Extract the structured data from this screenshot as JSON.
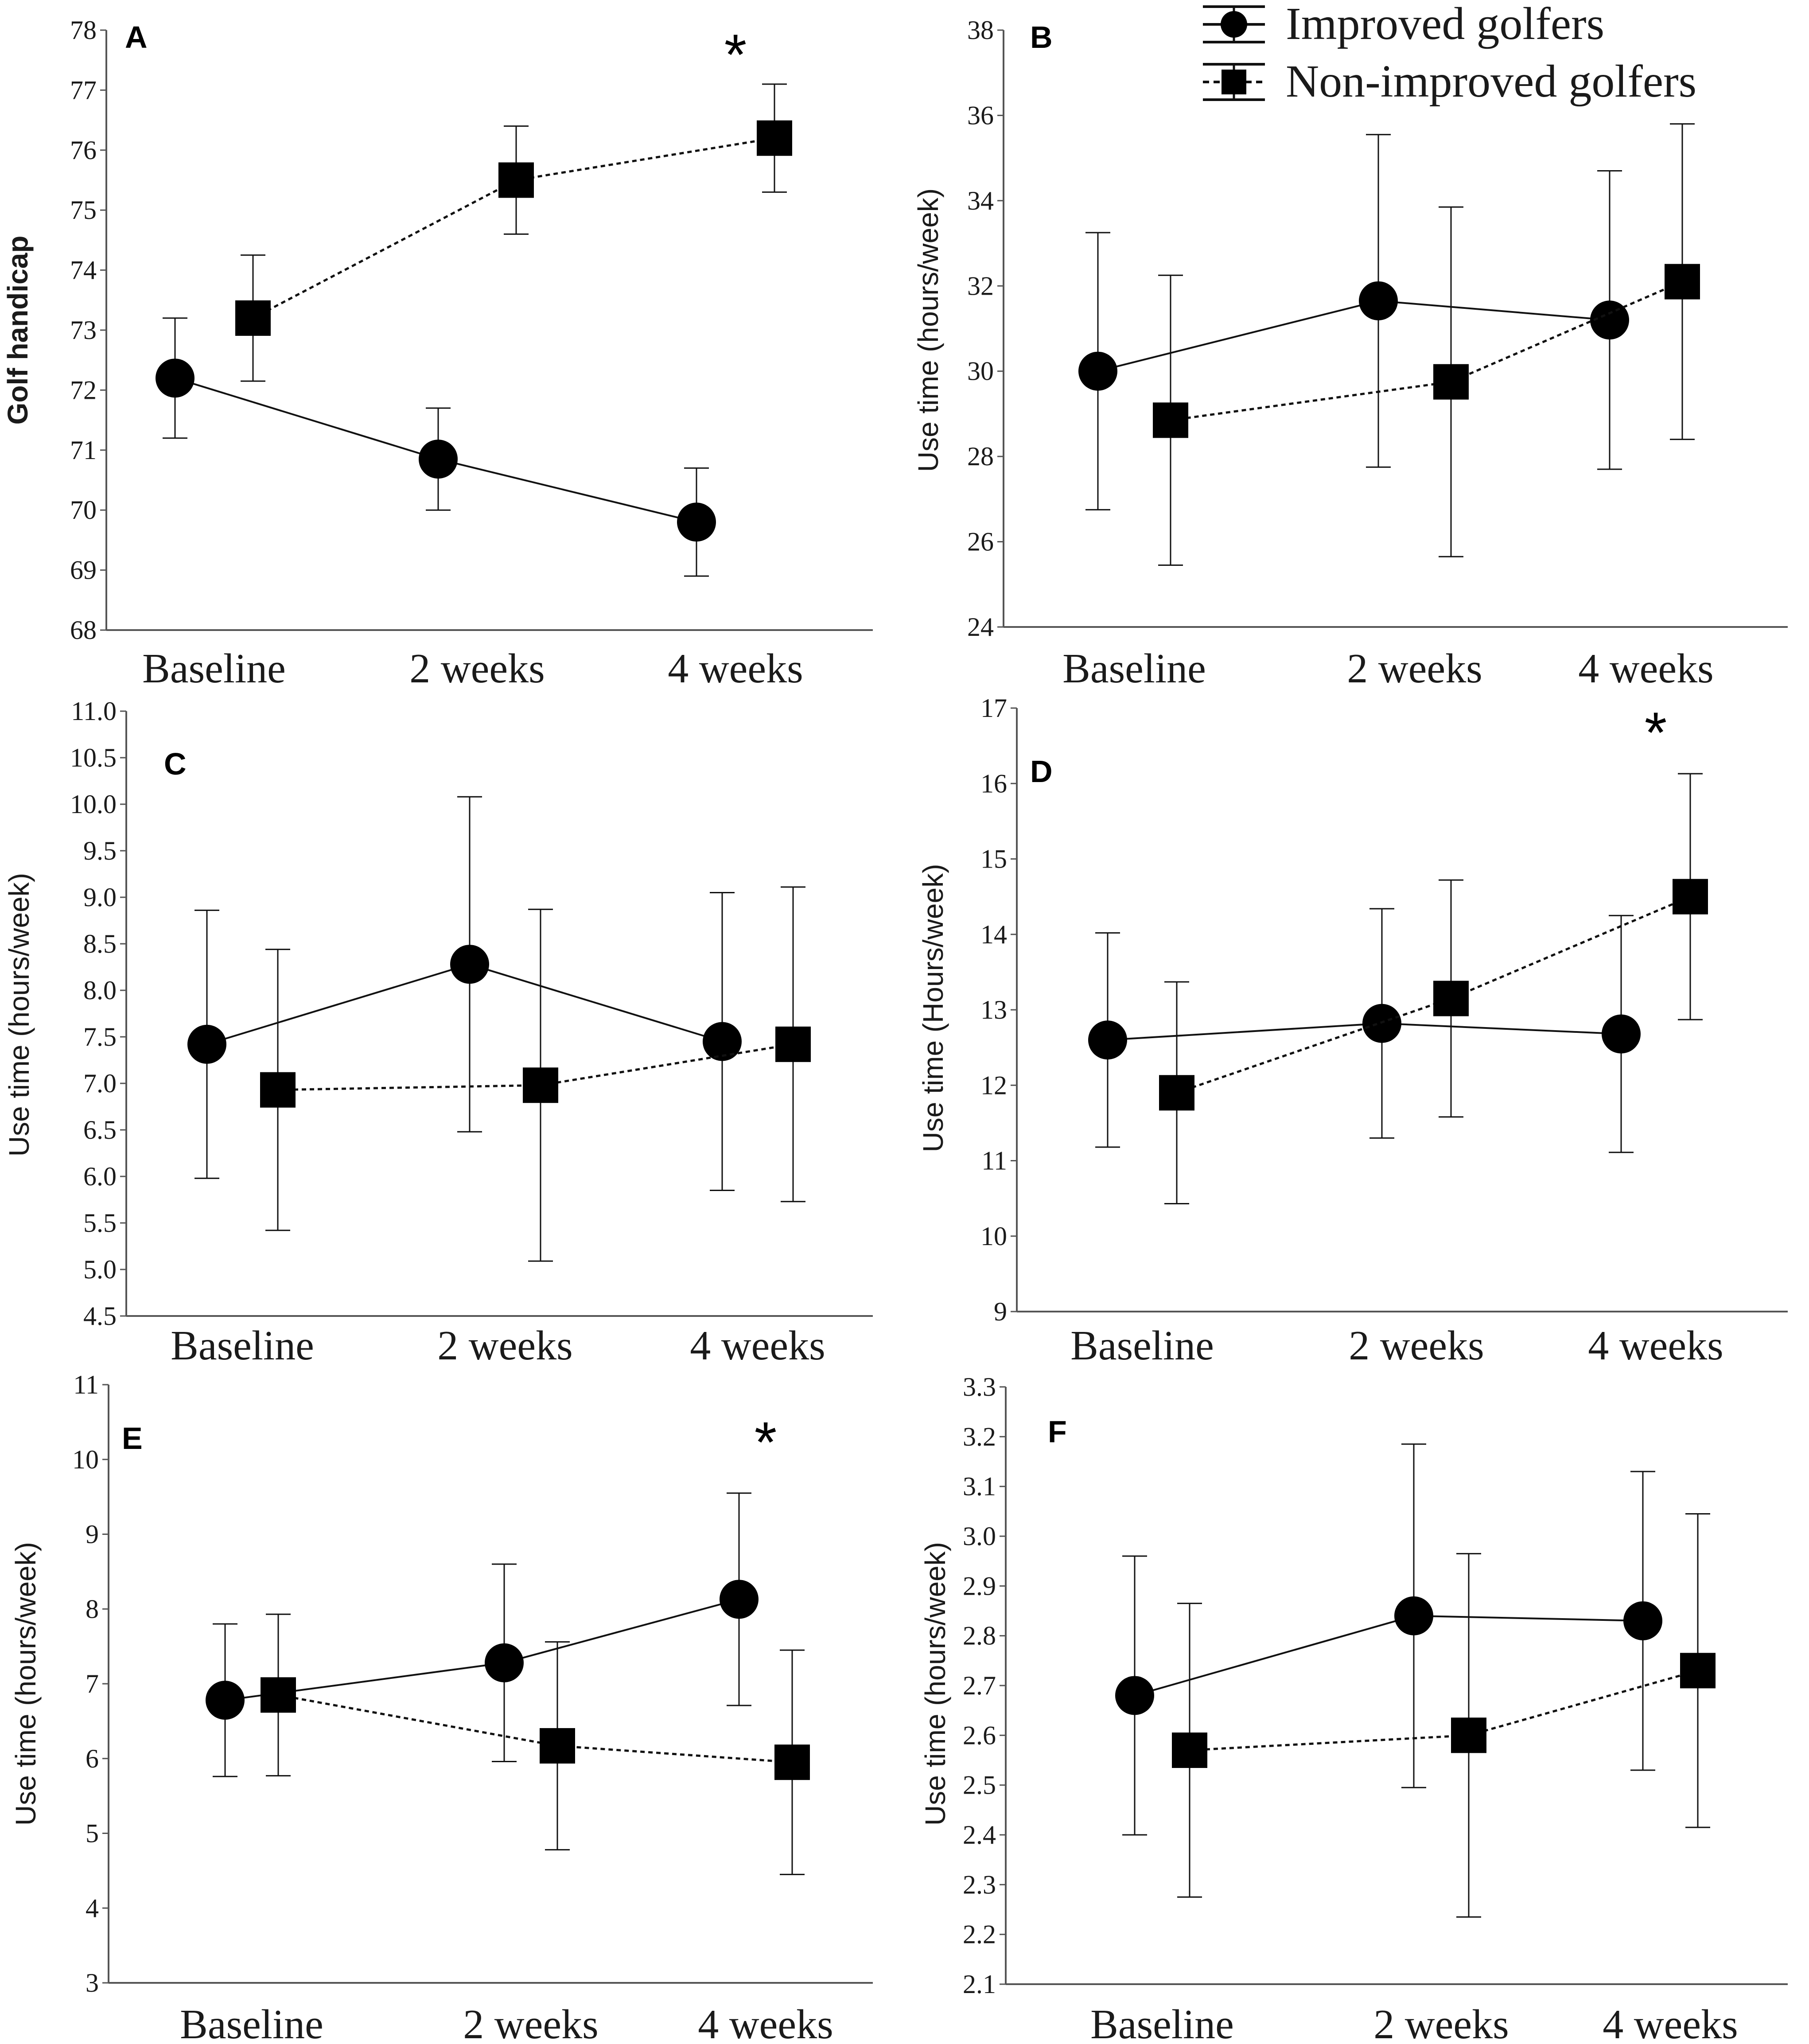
{
  "colors": {
    "ink": "#111111",
    "axis": "#555555",
    "background": "#ffffff"
  },
  "legend": {
    "improved_label": "Improved golfers",
    "nonimproved_label": "Non-improved golfers",
    "improved_marker_icon": "circle-marker-icon",
    "nonimproved_marker_icon": "square-marker-icon"
  },
  "chart_data": [
    {
      "panel": "A",
      "type": "line",
      "categories": [
        "Baseline",
        "2 weeks",
        "4 weeks"
      ],
      "ylabel": "Golf handicap",
      "ylim": [
        68,
        78
      ],
      "yticks": [
        "68",
        "69",
        "70",
        "71",
        "72",
        "73",
        "74",
        "75",
        "76",
        "77",
        "78"
      ],
      "significance": [
        {
          "category_index": 2,
          "mark": "*"
        }
      ],
      "series": [
        {
          "name": "Improved golfers",
          "values": [
            72.2,
            70.85,
            69.8
          ],
          "err": [
            1.0,
            0.85,
            0.9
          ]
        },
        {
          "name": "Non-improved golfers",
          "values": [
            73.2,
            75.5,
            76.2
          ],
          "err": [
            1.05,
            0.9,
            0.9
          ]
        }
      ]
    },
    {
      "panel": "B",
      "type": "line",
      "categories": [
        "Baseline",
        "2 weeks",
        "4 weeks"
      ],
      "ylabel": "Use time (hours/week)",
      "ylim": [
        24,
        38
      ],
      "yticks": [
        "24",
        "26",
        "28",
        "30",
        "32",
        "34",
        "36",
        "38"
      ],
      "significance": [],
      "series": [
        {
          "name": "Improved golfers",
          "values": [
            30.0,
            31.65,
            31.2
          ],
          "err": [
            3.25,
            3.9,
            3.5
          ]
        },
        {
          "name": "Non-improved golfers",
          "values": [
            28.85,
            29.75,
            32.1
          ],
          "err": [
            3.4,
            4.1,
            3.7
          ]
        }
      ]
    },
    {
      "panel": "C",
      "type": "line",
      "categories": [
        "Baseline",
        "2 weeks",
        "4 weeks"
      ],
      "ylabel": "Use time (hours/week)",
      "ylim": [
        4.5,
        11.0
      ],
      "yticks": [
        "4.5",
        "5.0",
        "5.5",
        "6.0",
        "6.5",
        "7.0",
        "7.5",
        "8.0",
        "8.5",
        "9.0",
        "9.5",
        "10.0",
        "10.5",
        "11.0"
      ],
      "significance": [],
      "series": [
        {
          "name": "Improved golfers",
          "values": [
            7.42,
            8.28,
            7.45
          ],
          "err": [
            1.44,
            1.8,
            1.6
          ]
        },
        {
          "name": "Non-improved golfers",
          "values": [
            6.93,
            6.98,
            7.42
          ],
          "err": [
            1.51,
            1.89,
            1.69
          ]
        }
      ]
    },
    {
      "panel": "D",
      "type": "line",
      "categories": [
        "Baseline",
        "2 weeks",
        "4 weeks"
      ],
      "ylabel": "Use time (Hours/week)",
      "ylim": [
        9,
        17
      ],
      "yticks": [
        "9",
        "10",
        "11",
        "12",
        "13",
        "14",
        "15",
        "16",
        "17"
      ],
      "significance": [
        {
          "category_index": 2,
          "mark": "*"
        }
      ],
      "series": [
        {
          "name": "Improved golfers",
          "values": [
            12.6,
            12.82,
            12.68
          ],
          "err": [
            1.42,
            1.52,
            1.57
          ]
        },
        {
          "name": "Non-improved golfers",
          "values": [
            11.9,
            13.15,
            14.5
          ],
          "err": [
            1.47,
            1.57,
            1.63
          ]
        }
      ]
    },
    {
      "panel": "E",
      "type": "line",
      "categories": [
        "Baseline",
        "2 weeks",
        "4 weeks"
      ],
      "ylabel": "Use time (hours/week)",
      "ylim": [
        3,
        11
      ],
      "yticks": [
        "3",
        "4",
        "5",
        "6",
        "7",
        "8",
        "9",
        "10",
        "11"
      ],
      "significance": [
        {
          "category_index": 2,
          "mark": "*"
        }
      ],
      "series": [
        {
          "name": "Improved golfers",
          "values": [
            6.78,
            7.28,
            8.13
          ],
          "err": [
            1.02,
            1.32,
            1.42
          ]
        },
        {
          "name": "Non-improved golfers",
          "values": [
            6.85,
            6.17,
            5.95
          ],
          "err": [
            1.08,
            1.39,
            1.5
          ]
        }
      ]
    },
    {
      "panel": "F",
      "type": "line",
      "categories": [
        "Baseline",
        "2 weeks",
        "4 weeks"
      ],
      "ylabel": "Use time (hours/week)",
      "ylim": [
        2.1,
        3.3
      ],
      "yticks": [
        "2.1",
        "2.2",
        "2.3",
        "2.4",
        "2.5",
        "2.6",
        "2.7",
        "2.8",
        "2.9",
        "3.0",
        "3.1",
        "3.2",
        "3.3"
      ],
      "significance": [],
      "series": [
        {
          "name": "Improved golfers",
          "values": [
            2.68,
            2.84,
            2.83
          ],
          "err": [
            0.28,
            0.345,
            0.3
          ]
        },
        {
          "name": "Non-improved golfers",
          "values": [
            2.57,
            2.6,
            2.73
          ],
          "err": [
            0.295,
            0.365,
            0.315
          ]
        }
      ]
    }
  ]
}
